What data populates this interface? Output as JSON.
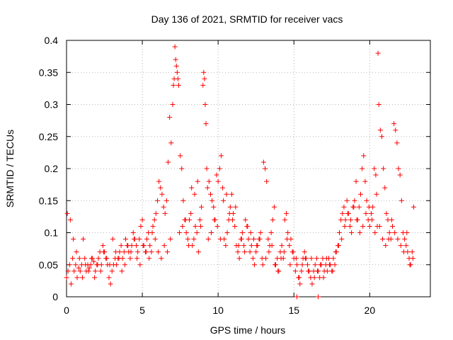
{
  "chart_data": {
    "type": "scatter",
    "title": "Day 136 of 2021, SRMTID for receiver vacs",
    "xlabel": "GPS time / hours",
    "ylabel": "SRMTID / TECUs",
    "xlim": [
      0,
      24
    ],
    "ylim": [
      0,
      0.4
    ],
    "x_ticks": [
      "0",
      "5",
      "10",
      "15",
      "20"
    ],
    "y_ticks": [
      "0",
      "0.05",
      "0.1",
      "0.15",
      "0.2",
      "0.25",
      "0.3",
      "0.35",
      "0.4"
    ],
    "grid": true,
    "marker": "+",
    "color": "#ff0000",
    "series": [
      {
        "name": "vacs",
        "x": [
          0.0,
          0.1,
          0.2,
          0.3,
          0.4,
          0.5,
          0.6,
          0.7,
          0.8,
          0.9,
          1.0,
          1.1,
          1.2,
          1.3,
          1.4,
          1.5,
          1.6,
          1.7,
          1.8,
          1.9,
          2.0,
          2.1,
          2.2,
          2.3,
          2.4,
          2.5,
          2.6,
          2.7,
          2.8,
          2.9,
          3.0,
          3.1,
          3.2,
          3.3,
          3.4,
          3.5,
          3.6,
          3.7,
          3.8,
          3.9,
          4.0,
          4.1,
          4.2,
          4.3,
          4.4,
          4.5,
          4.6,
          4.7,
          4.8,
          4.9,
          5.0,
          5.1,
          5.2,
          5.3,
          5.4,
          5.5,
          5.6,
          5.7,
          5.8,
          5.9,
          6.0,
          6.1,
          6.2,
          6.3,
          6.4,
          6.5,
          6.6,
          6.7,
          6.8,
          6.9,
          7.0,
          7.05,
          7.1,
          7.15,
          7.2,
          7.25,
          7.3,
          7.35,
          7.4,
          7.5,
          7.6,
          7.7,
          7.8,
          7.9,
          8.0,
          8.1,
          8.2,
          8.3,
          8.4,
          8.5,
          8.6,
          8.7,
          8.8,
          8.9,
          9.0,
          9.05,
          9.1,
          9.15,
          9.2,
          9.25,
          9.3,
          9.4,
          9.5,
          9.6,
          9.7,
          9.8,
          9.9,
          10.0,
          10.1,
          10.2,
          10.3,
          10.4,
          10.5,
          10.6,
          10.7,
          10.8,
          10.9,
          11.0,
          11.1,
          11.2,
          11.3,
          11.4,
          11.5,
          11.6,
          11.7,
          11.8,
          11.9,
          12.0,
          12.1,
          12.2,
          12.3,
          12.4,
          12.5,
          12.6,
          12.7,
          12.8,
          12.9,
          13.0,
          13.1,
          13.2,
          13.3,
          13.4,
          13.5,
          13.6,
          13.7,
          13.8,
          13.9,
          14.0,
          14.1,
          14.2,
          14.3,
          14.4,
          14.5,
          14.6,
          14.7,
          14.8,
          14.9,
          15.0,
          15.1,
          15.2,
          15.3,
          15.4,
          15.5,
          15.6,
          15.7,
          15.8,
          15.9,
          16.0,
          16.1,
          16.2,
          16.3,
          16.4,
          16.5,
          16.6,
          16.7,
          16.8,
          16.9,
          17.0,
          17.1,
          17.2,
          17.3,
          17.4,
          17.5,
          17.6,
          17.7,
          17.8,
          17.9,
          18.0,
          18.1,
          18.2,
          18.3,
          18.4,
          18.5,
          18.6,
          18.7,
          18.8,
          18.9,
          19.0,
          19.1,
          19.2,
          19.3,
          19.4,
          19.5,
          19.6,
          19.7,
          19.8,
          19.9,
          20.0,
          20.1,
          20.2,
          20.3,
          20.4,
          20.45,
          20.5,
          20.55,
          20.6,
          20.7,
          20.8,
          20.9,
          21.0,
          21.1,
          21.2,
          21.3,
          21.4,
          21.5,
          21.6,
          21.7,
          21.8,
          21.9,
          22.0,
          22.1,
          22.2,
          22.3,
          22.4,
          22.5,
          22.6,
          22.7,
          22.8,
          22.9,
          0.05,
          0.25,
          0.45,
          0.65,
          0.85,
          1.05,
          1.25,
          1.45,
          1.65,
          1.85,
          2.05,
          2.25,
          2.45,
          2.65,
          2.85,
          3.05,
          3.25,
          3.45,
          3.65,
          3.85,
          4.05,
          4.25,
          4.45,
          4.65,
          4.85,
          5.05,
          5.25,
          5.45,
          5.65,
          5.85,
          6.05,
          6.25,
          6.45,
          6.65,
          6.85,
          7.45,
          7.65,
          7.85,
          8.05,
          8.25,
          8.45,
          8.65,
          8.85,
          9.35,
          9.55,
          9.75,
          9.95,
          10.15,
          10.35,
          10.55,
          10.75,
          10.95,
          11.15,
          11.35,
          11.55,
          11.75,
          11.95,
          12.15,
          12.35,
          12.55,
          12.75,
          12.95,
          13.15,
          13.35,
          13.55,
          13.75,
          13.95,
          14.15,
          14.35,
          14.55,
          14.75,
          14.95,
          15.15,
          15.35,
          15.55,
          15.75,
          15.95,
          16.15,
          16.35,
          16.55,
          16.75,
          16.95,
          17.15,
          17.35,
          17.55,
          17.75,
          17.95,
          18.15,
          18.35,
          18.55,
          18.75,
          18.95,
          19.15,
          19.35,
          19.55,
          19.75,
          19.95,
          20.15,
          20.35,
          20.65,
          20.85,
          21.05,
          21.25,
          21.45,
          21.65,
          21.85,
          22.05,
          22.25,
          22.45,
          22.65,
          22.85,
          15.2,
          16.6
        ],
        "y": [
          0.03,
          0.04,
          0.05,
          0.02,
          0.06,
          0.04,
          0.05,
          0.03,
          0.045,
          0.04,
          0.05,
          0.09,
          0.06,
          0.04,
          0.05,
          0.045,
          0.05,
          0.06,
          0.055,
          0.04,
          0.05,
          0.06,
          0.07,
          0.05,
          0.08,
          0.07,
          0.06,
          0.05,
          0.03,
          0.02,
          0.04,
          0.05,
          0.06,
          0.05,
          0.06,
          0.07,
          0.08,
          0.06,
          0.07,
          0.09,
          0.08,
          0.07,
          0.06,
          0.08,
          0.1,
          0.09,
          0.08,
          0.07,
          0.09,
          0.11,
          0.12,
          0.08,
          0.07,
          0.09,
          0.1,
          0.08,
          0.07,
          0.11,
          0.12,
          0.13,
          0.15,
          0.18,
          0.17,
          0.16,
          0.14,
          0.13,
          0.15,
          0.21,
          0.28,
          0.24,
          0.3,
          0.33,
          0.34,
          0.39,
          0.37,
          0.36,
          0.35,
          0.34,
          0.33,
          0.22,
          0.2,
          0.15,
          0.12,
          0.1,
          0.09,
          0.12,
          0.13,
          0.08,
          0.09,
          0.11,
          0.1,
          0.07,
          0.12,
          0.14,
          0.33,
          0.35,
          0.34,
          0.3,
          0.27,
          0.2,
          0.17,
          0.18,
          0.16,
          0.15,
          0.14,
          0.12,
          0.19,
          0.18,
          0.2,
          0.22,
          0.17,
          0.09,
          0.08,
          0.1,
          0.12,
          0.14,
          0.16,
          0.13,
          0.11,
          0.08,
          0.07,
          0.06,
          0.09,
          0.1,
          0.08,
          0.12,
          0.11,
          0.09,
          0.07,
          0.08,
          0.06,
          0.05,
          0.07,
          0.08,
          0.09,
          0.1,
          0.06,
          0.21,
          0.2,
          0.18,
          0.09,
          0.08,
          0.1,
          0.12,
          0.14,
          0.05,
          0.06,
          0.04,
          0.07,
          0.08,
          0.06,
          0.12,
          0.13,
          0.1,
          0.08,
          0.09,
          0.07,
          0.06,
          0.04,
          0.05,
          0.03,
          0.02,
          0.04,
          0.06,
          0.07,
          0.06,
          0.05,
          0.04,
          0.03,
          0.02,
          0.04,
          0.05,
          0.06,
          0.04,
          0.03,
          0.05,
          0.06,
          0.04,
          0.05,
          0.04,
          0.06,
          0.05,
          0.04,
          0.06,
          0.05,
          0.07,
          0.08,
          0.1,
          0.12,
          0.13,
          0.14,
          0.12,
          0.15,
          0.13,
          0.11,
          0.1,
          0.14,
          0.15,
          0.18,
          0.12,
          0.14,
          0.16,
          0.2,
          0.22,
          0.18,
          0.15,
          0.12,
          0.11,
          0.13,
          0.14,
          0.2,
          0.19,
          0.16,
          0.11,
          0.38,
          0.3,
          0.26,
          0.25,
          0.2,
          0.17,
          0.13,
          0.12,
          0.1,
          0.09,
          0.11,
          0.27,
          0.26,
          0.24,
          0.2,
          0.19,
          0.15,
          0.1,
          0.09,
          0.08,
          0.07,
          0.06,
          0.05,
          0.07,
          0.14,
          0.13,
          0.12,
          0.09,
          0.07,
          0.06,
          0.03,
          0.05,
          0.04,
          0.06,
          0.03,
          0.05,
          0.04,
          0.07,
          0.06,
          0.05,
          0.09,
          0.07,
          0.06,
          0.04,
          0.05,
          0.08,
          0.07,
          0.09,
          0.06,
          0.05,
          0.08,
          0.07,
          0.06,
          0.1,
          0.09,
          0.07,
          0.06,
          0.08,
          0.07,
          0.09,
          0.1,
          0.11,
          0.12,
          0.08,
          0.17,
          0.16,
          0.18,
          0.11,
          0.09,
          0.1,
          0.12,
          0.11,
          0.09,
          0.15,
          0.16,
          0.13,
          0.12,
          0.14,
          0.08,
          0.09,
          0.07,
          0.11,
          0.1,
          0.09,
          0.08,
          0.09,
          0.05,
          0.06,
          0.07,
          0.08,
          0.05,
          0.04,
          0.06,
          0.07,
          0.09,
          0.05,
          0.07,
          0.06,
          0.03,
          0.05,
          0.06,
          0.04,
          0.06,
          0.03,
          0.04,
          0.05,
          0.03,
          0.06,
          0.05,
          0.04,
          0.07,
          0.08,
          0.09,
          0.11,
          0.13,
          0.12,
          0.14,
          0.12,
          0.1,
          0.11,
          0.13,
          0.14,
          0.12,
          0.1,
          0.11,
          0.09,
          0.08,
          0.09,
          0.12,
          0.1,
          0.09,
          0.08,
          0.07,
          0.1,
          0.05,
          0.06,
          0.0,
          0.0
        ]
      }
    ]
  }
}
